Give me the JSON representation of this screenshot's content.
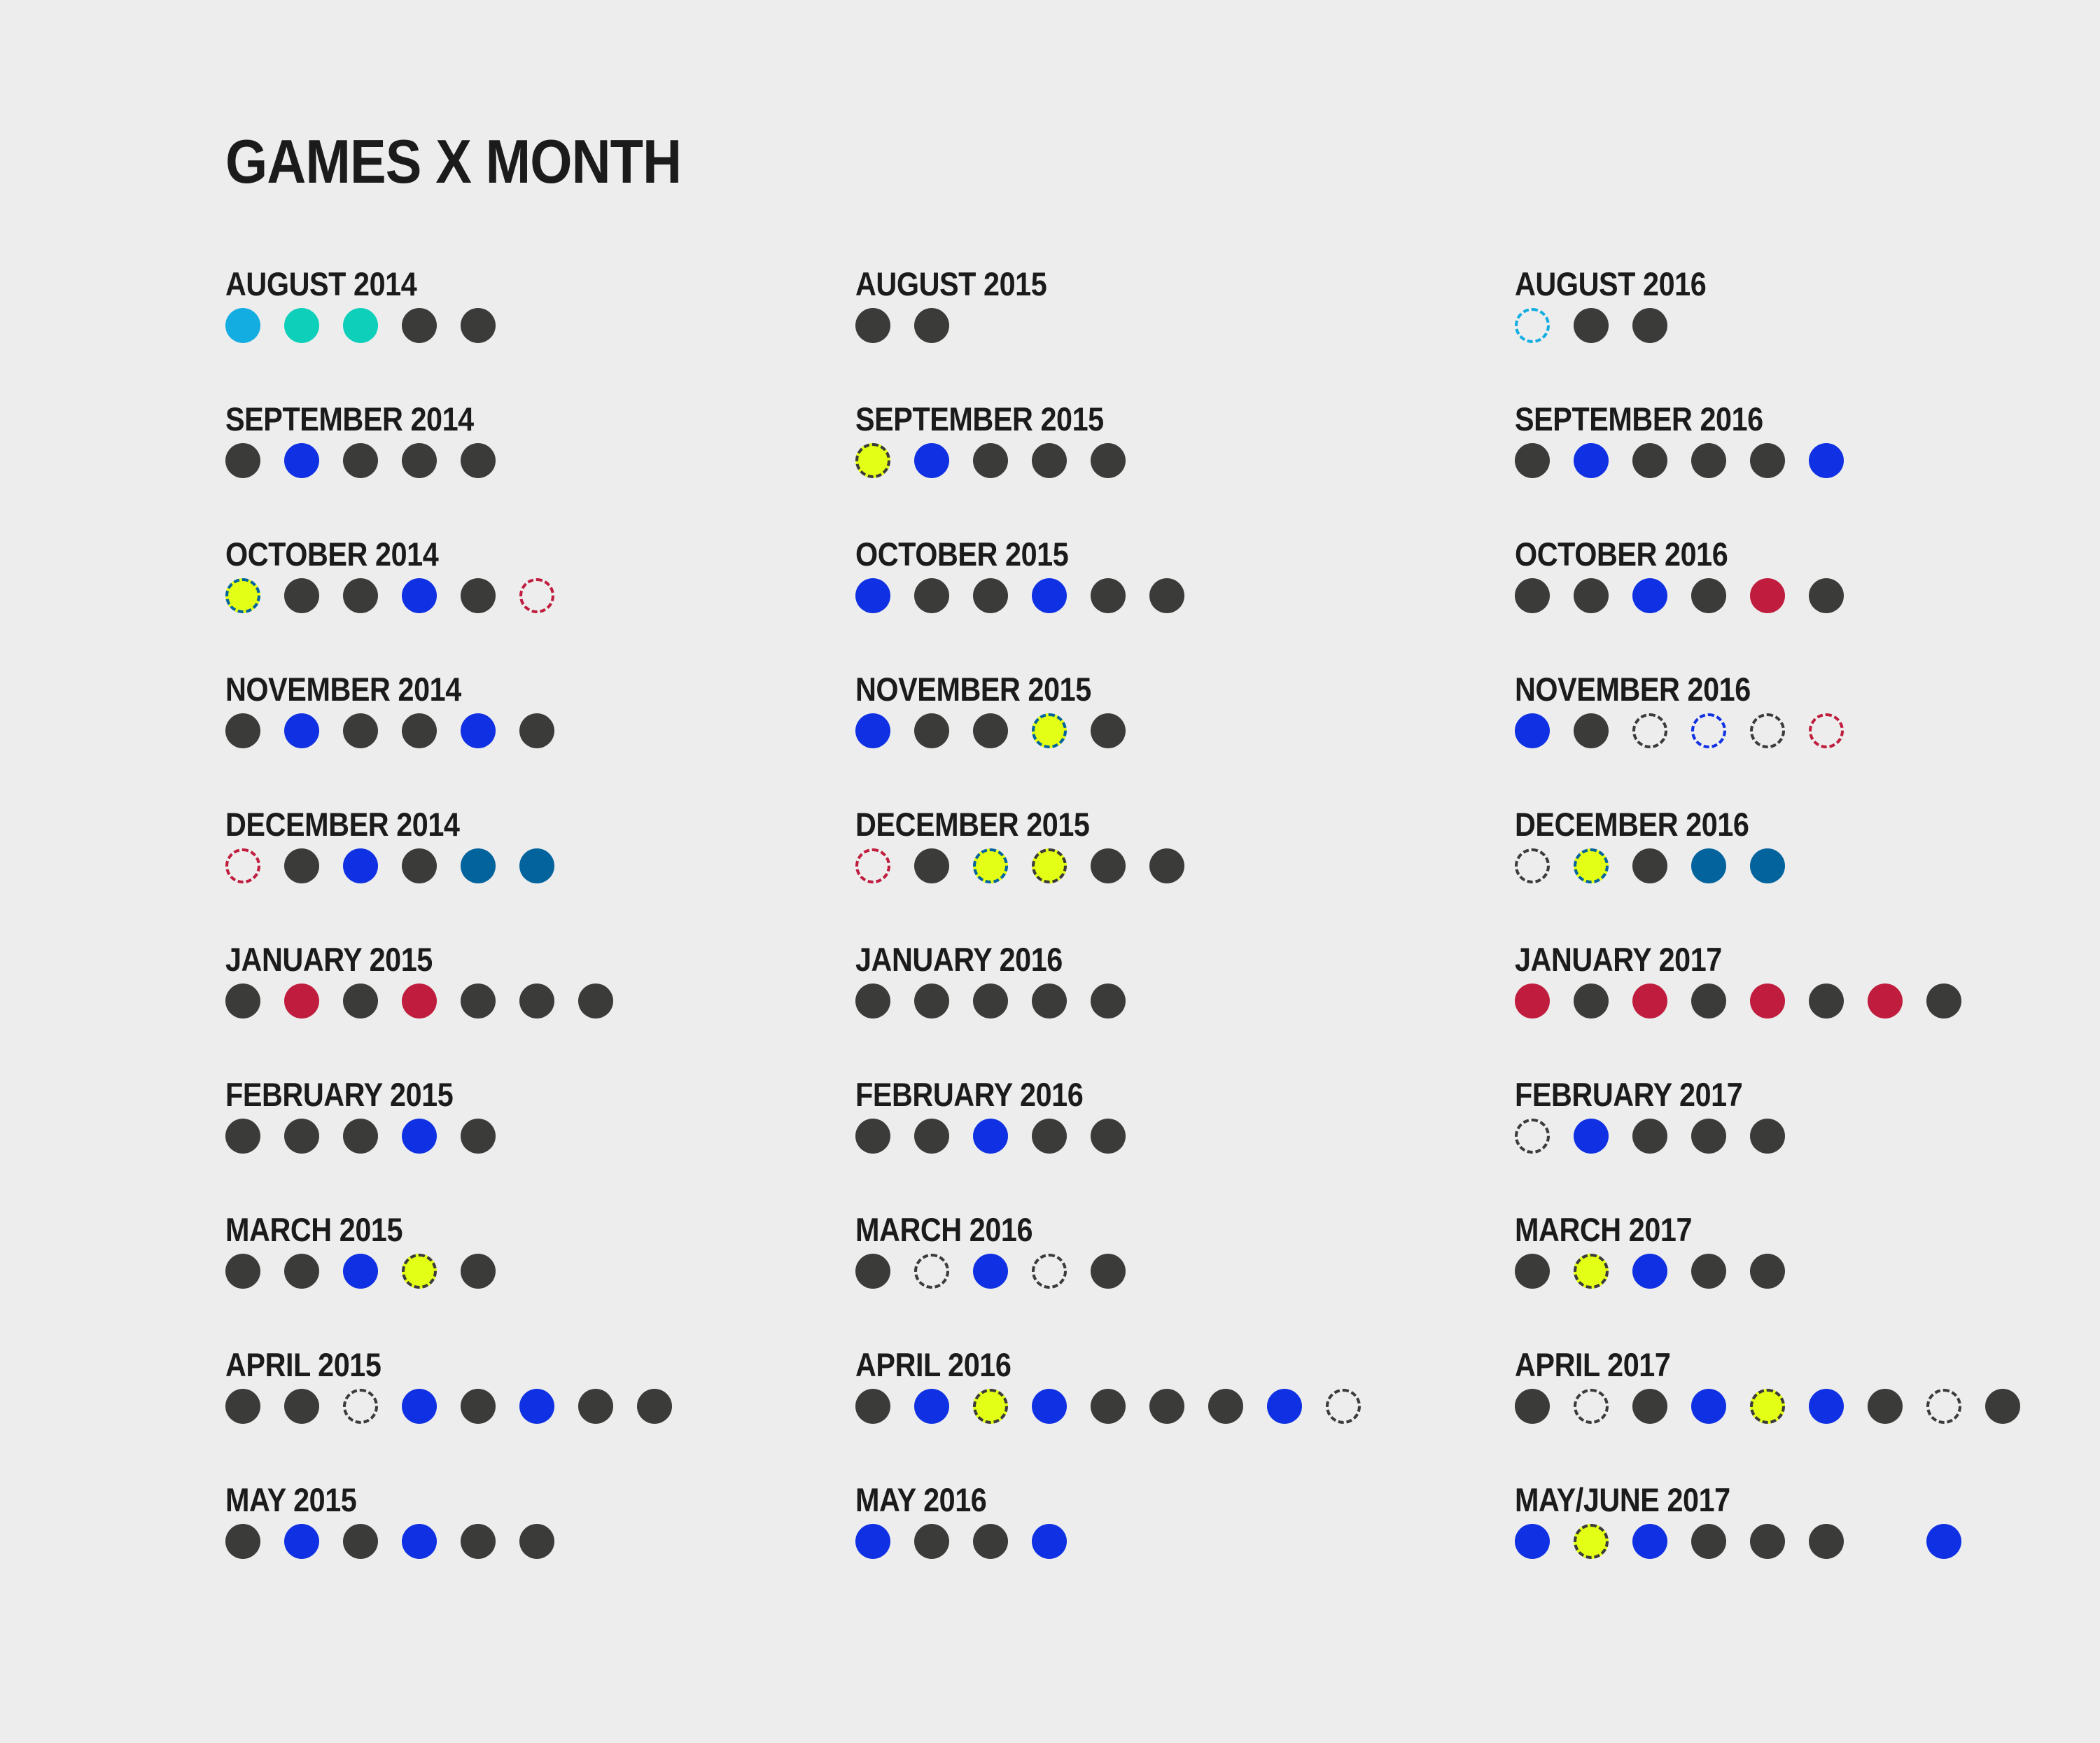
{
  "chart_data": {
    "type": "dot-grid",
    "title": "GAMES X MONTH",
    "colors": {
      "dark": "#3b3b39",
      "blue": "#0f31e3",
      "red": "#c01d3e",
      "yellow": "#e3ff15",
      "lightblue": "#13ade2",
      "teal": "#0dcfba",
      "steel": "#02639d"
    },
    "columns": [
      {
        "months": [
          {
            "label": "AUGUST 2014",
            "dots": [
              {
                "fill": "lightblue"
              },
              {
                "fill": "teal"
              },
              {
                "fill": "teal"
              },
              {
                "fill": "dark"
              },
              {
                "fill": "dark"
              }
            ]
          },
          {
            "label": "SEPTEMBER 2014",
            "dots": [
              {
                "fill": "dark"
              },
              {
                "fill": "blue"
              },
              {
                "fill": "dark"
              },
              {
                "fill": "dark"
              },
              {
                "fill": "dark"
              }
            ]
          },
          {
            "label": "OCTOBER 2014",
            "dots": [
              {
                "fill": "yellow",
                "dash": "steel"
              },
              {
                "fill": "dark"
              },
              {
                "fill": "dark"
              },
              {
                "fill": "blue"
              },
              {
                "fill": "dark"
              },
              {
                "dash": "red"
              }
            ]
          },
          {
            "label": "NOVEMBER 2014",
            "dots": [
              {
                "fill": "dark"
              },
              {
                "fill": "blue"
              },
              {
                "fill": "dark"
              },
              {
                "fill": "dark"
              },
              {
                "fill": "blue"
              },
              {
                "fill": "dark"
              }
            ]
          },
          {
            "label": "DECEMBER 2014",
            "dots": [
              {
                "dash": "red"
              },
              {
                "fill": "dark"
              },
              {
                "fill": "blue"
              },
              {
                "fill": "dark"
              },
              {
                "fill": "steel"
              },
              {
                "fill": "steel"
              }
            ]
          },
          {
            "label": "JANUARY 2015",
            "dots": [
              {
                "fill": "dark"
              },
              {
                "fill": "red"
              },
              {
                "fill": "dark"
              },
              {
                "fill": "red"
              },
              {
                "fill": "dark"
              },
              {
                "fill": "dark"
              },
              {
                "fill": "dark"
              }
            ]
          },
          {
            "label": "FEBRUARY 2015",
            "dots": [
              {
                "fill": "dark"
              },
              {
                "fill": "dark"
              },
              {
                "fill": "dark"
              },
              {
                "fill": "blue"
              },
              {
                "fill": "dark"
              }
            ]
          },
          {
            "label": "MARCH 2015",
            "dots": [
              {
                "fill": "dark"
              },
              {
                "fill": "dark"
              },
              {
                "fill": "blue"
              },
              {
                "fill": "yellow",
                "dash": "dark"
              },
              {
                "fill": "dark"
              }
            ]
          },
          {
            "label": "APRIL 2015",
            "dots": [
              {
                "fill": "dark"
              },
              {
                "fill": "dark"
              },
              {
                "dash": "dark"
              },
              {
                "fill": "blue"
              },
              {
                "fill": "dark"
              },
              {
                "fill": "blue"
              },
              {
                "fill": "dark"
              },
              {
                "fill": "dark"
              }
            ]
          },
          {
            "label": "MAY 2015",
            "dots": [
              {
                "fill": "dark"
              },
              {
                "fill": "blue"
              },
              {
                "fill": "dark"
              },
              {
                "fill": "blue"
              },
              {
                "fill": "dark"
              },
              {
                "fill": "dark"
              }
            ]
          }
        ]
      },
      {
        "months": [
          {
            "label": "AUGUST 2015",
            "dots": [
              {
                "fill": "dark"
              },
              {
                "fill": "dark"
              }
            ]
          },
          {
            "label": "SEPTEMBER 2015",
            "dots": [
              {
                "fill": "yellow",
                "dash": "dark"
              },
              {
                "fill": "blue"
              },
              {
                "fill": "dark"
              },
              {
                "fill": "dark"
              },
              {
                "fill": "dark"
              }
            ]
          },
          {
            "label": "OCTOBER 2015",
            "dots": [
              {
                "fill": "blue"
              },
              {
                "fill": "dark"
              },
              {
                "fill": "dark"
              },
              {
                "fill": "blue"
              },
              {
                "fill": "dark"
              },
              {
                "fill": "dark"
              }
            ]
          },
          {
            "label": "NOVEMBER 2015",
            "dots": [
              {
                "fill": "blue"
              },
              {
                "fill": "dark"
              },
              {
                "fill": "dark"
              },
              {
                "fill": "yellow",
                "dash": "steel"
              },
              {
                "fill": "dark"
              }
            ]
          },
          {
            "label": "DECEMBER 2015",
            "dots": [
              {
                "dash": "red"
              },
              {
                "fill": "dark"
              },
              {
                "fill": "yellow",
                "dash": "steel"
              },
              {
                "fill": "yellow",
                "dash": "dark"
              },
              {
                "fill": "dark"
              },
              {
                "fill": "dark"
              }
            ]
          },
          {
            "label": "JANUARY 2016",
            "dots": [
              {
                "fill": "dark"
              },
              {
                "fill": "dark"
              },
              {
                "fill": "dark"
              },
              {
                "fill": "dark"
              },
              {
                "fill": "dark"
              }
            ]
          },
          {
            "label": "FEBRUARY 2016",
            "dots": [
              {
                "fill": "dark"
              },
              {
                "fill": "dark"
              },
              {
                "fill": "blue"
              },
              {
                "fill": "dark"
              },
              {
                "fill": "dark"
              }
            ]
          },
          {
            "label": "MARCH 2016",
            "dots": [
              {
                "fill": "dark"
              },
              {
                "dash": "dark"
              },
              {
                "fill": "blue"
              },
              {
                "dash": "dark"
              },
              {
                "fill": "dark"
              }
            ]
          },
          {
            "label": "APRIL 2016",
            "dots": [
              {
                "fill": "dark"
              },
              {
                "fill": "blue"
              },
              {
                "fill": "yellow",
                "dash": "dark"
              },
              {
                "fill": "blue"
              },
              {
                "fill": "dark"
              },
              {
                "fill": "dark"
              },
              {
                "fill": "dark"
              },
              {
                "fill": "blue"
              },
              {
                "dash": "dark"
              }
            ]
          },
          {
            "label": "MAY 2016",
            "dots": [
              {
                "fill": "blue"
              },
              {
                "fill": "dark"
              },
              {
                "fill": "dark"
              },
              {
                "fill": "blue"
              }
            ]
          }
        ]
      },
      {
        "months": [
          {
            "label": "AUGUST 2016",
            "dots": [
              {
                "dash": "lightblue"
              },
              {
                "fill": "dark"
              },
              {
                "fill": "dark"
              }
            ]
          },
          {
            "label": "SEPTEMBER 2016",
            "dots": [
              {
                "fill": "dark"
              },
              {
                "fill": "blue"
              },
              {
                "fill": "dark"
              },
              {
                "fill": "dark"
              },
              {
                "fill": "dark"
              },
              {
                "fill": "blue"
              }
            ]
          },
          {
            "label": "OCTOBER 2016",
            "dots": [
              {
                "fill": "dark"
              },
              {
                "fill": "dark"
              },
              {
                "fill": "blue"
              },
              {
                "fill": "dark"
              },
              {
                "fill": "red"
              },
              {
                "fill": "dark"
              }
            ]
          },
          {
            "label": "NOVEMBER 2016",
            "dots": [
              {
                "fill": "blue"
              },
              {
                "fill": "dark"
              },
              {
                "dash": "dark"
              },
              {
                "dash": "blue"
              },
              {
                "dash": "dark"
              },
              {
                "dash": "red"
              }
            ]
          },
          {
            "label": "DECEMBER 2016",
            "dots": [
              {
                "dash": "dark"
              },
              {
                "fill": "yellow",
                "dash": "steel"
              },
              {
                "fill": "dark"
              },
              {
                "fill": "steel"
              },
              {
                "fill": "steel"
              }
            ]
          },
          {
            "label": "JANUARY 2017",
            "dots": [
              {
                "fill": "red"
              },
              {
                "fill": "dark"
              },
              {
                "fill": "red"
              },
              {
                "fill": "dark"
              },
              {
                "fill": "red"
              },
              {
                "fill": "dark"
              },
              {
                "fill": "red"
              },
              {
                "fill": "dark"
              }
            ]
          },
          {
            "label": "FEBRUARY 2017",
            "dots": [
              {
                "dash": "dark"
              },
              {
                "fill": "blue"
              },
              {
                "fill": "dark"
              },
              {
                "fill": "dark"
              },
              {
                "fill": "dark"
              }
            ]
          },
          {
            "label": "MARCH 2017",
            "dots": [
              {
                "fill": "dark"
              },
              {
                "fill": "yellow",
                "dash": "dark"
              },
              {
                "fill": "blue"
              },
              {
                "fill": "dark"
              },
              {
                "fill": "dark"
              }
            ]
          },
          {
            "label": "APRIL 2017",
            "dots": [
              {
                "fill": "dark"
              },
              {
                "dash": "dark"
              },
              {
                "fill": "dark"
              },
              {
                "fill": "blue"
              },
              {
                "fill": "yellow",
                "dash": "dark"
              },
              {
                "fill": "blue"
              },
              {
                "fill": "dark"
              },
              {
                "dash": "dark"
              },
              {
                "fill": "dark"
              }
            ]
          },
          {
            "label": "MAY/JUNE 2017",
            "dots": [
              {
                "fill": "blue"
              },
              {
                "fill": "yellow",
                "dash": "dark"
              },
              {
                "fill": "blue"
              },
              {
                "fill": "dark"
              },
              {
                "fill": "dark"
              },
              {
                "fill": "dark"
              },
              {
                "skip": true
              },
              {
                "fill": "blue"
              }
            ]
          }
        ]
      }
    ]
  }
}
